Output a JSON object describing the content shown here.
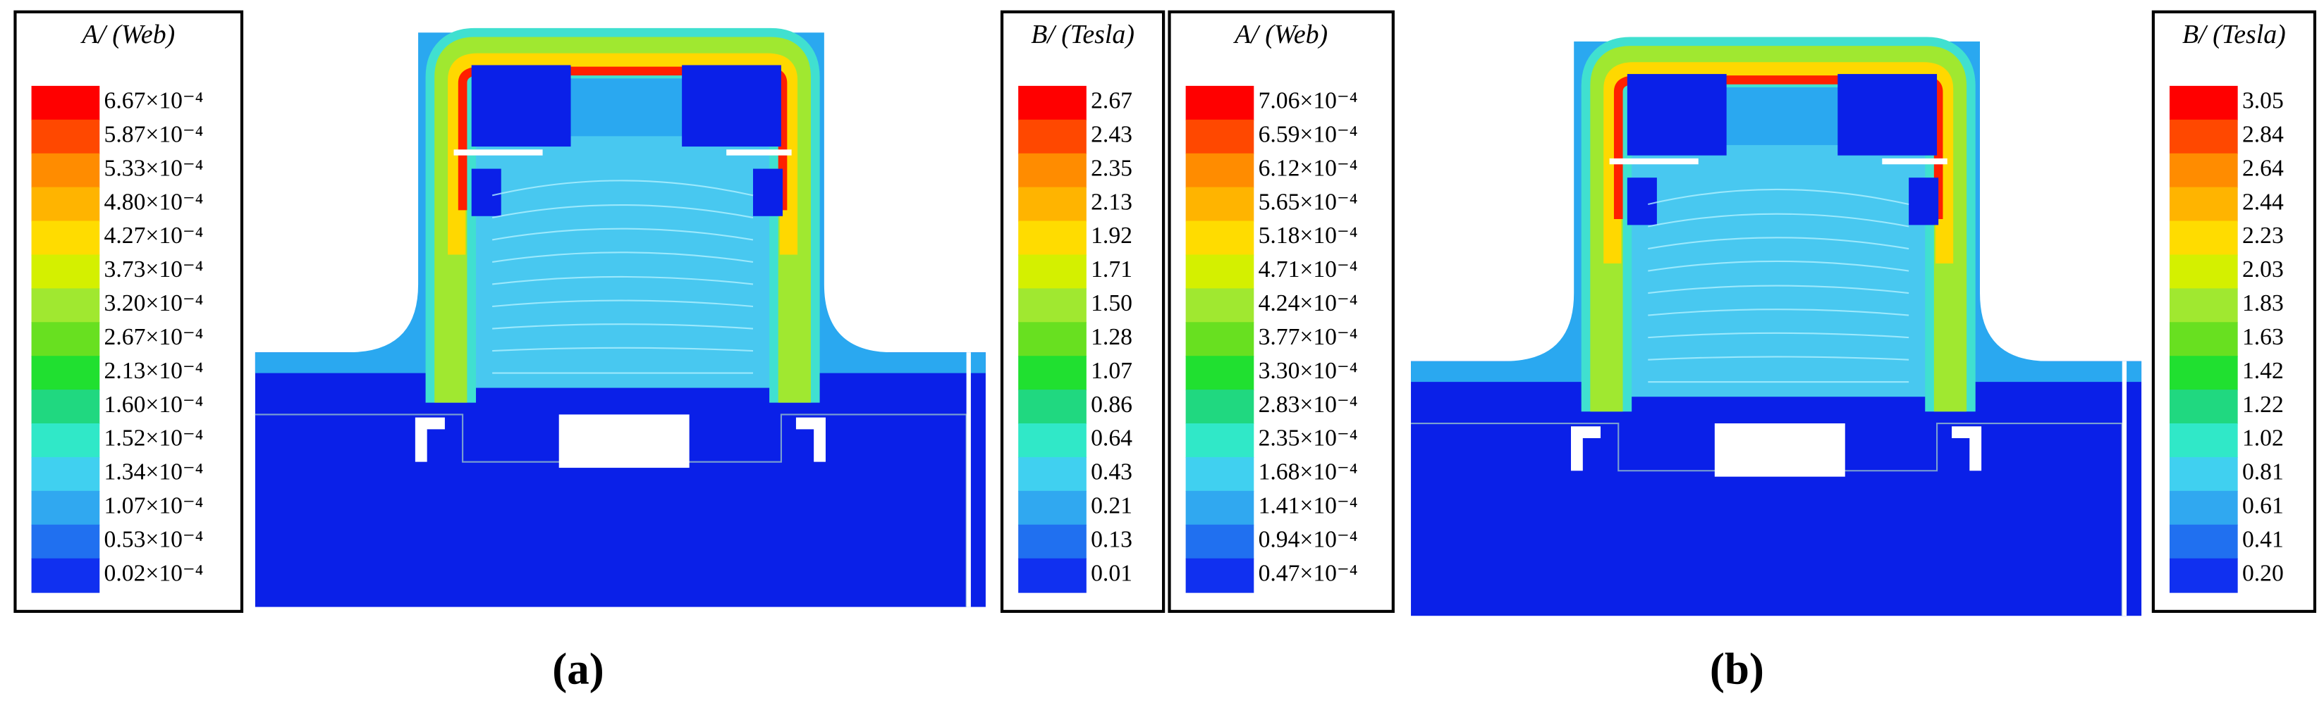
{
  "figure": {
    "colors": [
      "#ff0000",
      "#ff4800",
      "#ff8c00",
      "#ffb400",
      "#ffdc00",
      "#d4f000",
      "#a0e830",
      "#68e020",
      "#20e030",
      "#20d880",
      "#30e8c8",
      "#40d0f0",
      "#30a8f0",
      "#2070f0",
      "#1030f0"
    ],
    "panels": [
      {
        "caption": "(a)",
        "legends": [
          {
            "title": "A/ (Web)",
            "labels": [
              "6.67×10⁻⁴",
              "5.87×10⁻⁴",
              "5.33×10⁻⁴",
              "4.80×10⁻⁴",
              "4.27×10⁻⁴",
              "3.73×10⁻⁴",
              "3.20×10⁻⁴",
              "2.67×10⁻⁴",
              "2.13×10⁻⁴",
              "1.60×10⁻⁴",
              "1.52×10⁻⁴",
              "1.34×10⁻⁴",
              "1.07×10⁻⁴",
              "0.53×10⁻⁴",
              "0.02×10⁻⁴"
            ]
          },
          {
            "title": "B/ (Tesla)",
            "labels": [
              "2.67",
              "2.43",
              "2.35",
              "2.13",
              "1.92",
              "1.71",
              "1.50",
              "1.28",
              "1.07",
              "0.86",
              "0.64",
              "0.43",
              "0.21",
              "0.13",
              "0.01"
            ]
          }
        ]
      },
      {
        "caption": "(b)",
        "legends": [
          {
            "title": "A/ (Web)",
            "labels": [
              "7.06×10⁻⁴",
              "6.59×10⁻⁴",
              "6.12×10⁻⁴",
              "5.65×10⁻⁴",
              "5.18×10⁻⁴",
              "4.71×10⁻⁴",
              "4.24×10⁻⁴",
              "3.77×10⁻⁴",
              "3.30×10⁻⁴",
              "2.83×10⁻⁴",
              "2.35×10⁻⁴",
              "1.68×10⁻⁴",
              "1.41×10⁻⁴",
              "0.94×10⁻⁴",
              "0.47×10⁻⁴"
            ]
          },
          {
            "title": "B/ (Tesla)",
            "labels": [
              "3.05",
              "2.84",
              "2.64",
              "2.44",
              "2.23",
              "2.03",
              "1.83",
              "1.63",
              "1.42",
              "1.22",
              "1.02",
              "0.81",
              "0.61",
              "0.41",
              "0.20"
            ]
          }
        ]
      }
    ]
  }
}
